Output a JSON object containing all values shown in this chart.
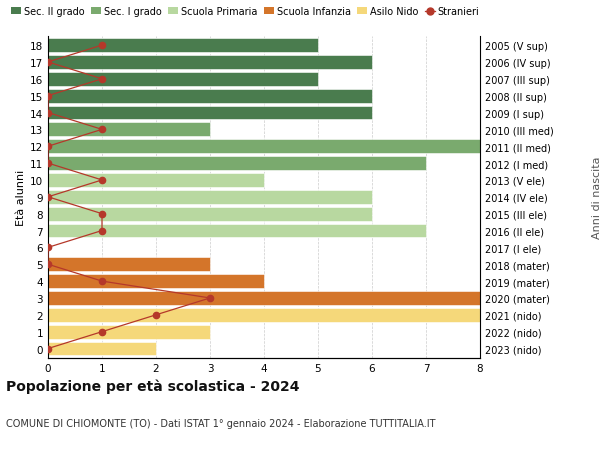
{
  "ages": [
    18,
    17,
    16,
    15,
    14,
    13,
    12,
    11,
    10,
    9,
    8,
    7,
    6,
    5,
    4,
    3,
    2,
    1,
    0
  ],
  "right_labels": [
    "2005 (V sup)",
    "2006 (IV sup)",
    "2007 (III sup)",
    "2008 (II sup)",
    "2009 (I sup)",
    "2010 (III med)",
    "2011 (II med)",
    "2012 (I med)",
    "2013 (V ele)",
    "2014 (IV ele)",
    "2015 (III ele)",
    "2016 (II ele)",
    "2017 (I ele)",
    "2018 (mater)",
    "2019 (mater)",
    "2020 (mater)",
    "2021 (nido)",
    "2022 (nido)",
    "2023 (nido)"
  ],
  "bar_values": [
    5,
    6,
    5,
    6,
    6,
    3,
    8,
    7,
    4,
    6,
    6,
    7,
    0,
    3,
    4,
    8,
    8,
    3,
    2
  ],
  "stranieri_values": [
    1,
    0,
    1,
    0,
    0,
    1,
    0,
    0,
    1,
    0,
    1,
    1,
    0,
    0,
    1,
    3,
    2,
    1,
    0
  ],
  "categories": {
    "sec_II": [
      18,
      17,
      16,
      15,
      14
    ],
    "sec_I": [
      13,
      12,
      11
    ],
    "primaria": [
      10,
      9,
      8,
      7,
      6
    ],
    "infanzia": [
      5,
      4,
      3
    ],
    "nido": [
      2,
      1,
      0
    ]
  },
  "colors": {
    "sec_II": "#4a7c4e",
    "sec_I": "#7aaa6e",
    "primaria": "#b8d8a0",
    "infanzia": "#d4752a",
    "nido": "#f5d87a",
    "stranieri_line": "#b5382a",
    "stranieri_dot": "#b5382a"
  },
  "legend_labels": [
    "Sec. II grado",
    "Sec. I grado",
    "Scuola Primaria",
    "Scuola Infanzia",
    "Asilo Nido",
    "Stranieri"
  ],
  "title": "Popolazione per età scolastica - 2024",
  "subtitle": "COMUNE DI CHIOMONTE (TO) - Dati ISTAT 1° gennaio 2024 - Elaborazione TUTTITALIA.IT",
  "ylabel_left": "Età alunni",
  "ylabel_right": "Anni di nascita",
  "xlim": [
    0,
    8
  ],
  "xticks": [
    0,
    1,
    2,
    3,
    4,
    5,
    6,
    7,
    8
  ],
  "bar_height": 0.82
}
